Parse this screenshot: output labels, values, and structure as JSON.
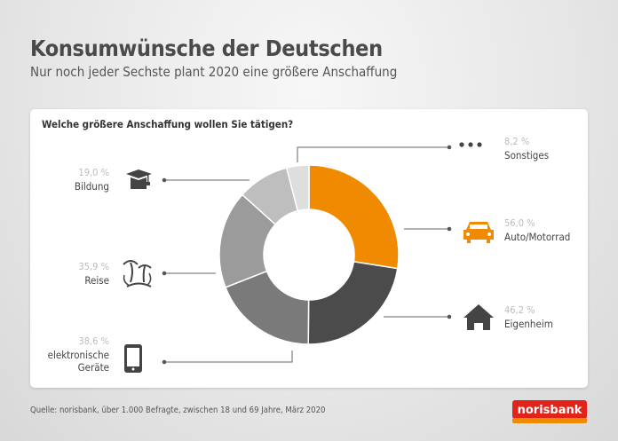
{
  "header": {
    "title": "Konsumwünsche der Deutschen",
    "subtitle": "Nur noch jeder Sechste plant 2020 eine größere Anschaffung"
  },
  "chart_data": {
    "type": "pie",
    "variant": "donut",
    "title": "Welche größere Anschaffung wollen Sie tätigen?",
    "categories": [
      "Auto/Motorrad",
      "Eigenheim",
      "elektronische Geräte",
      "Reise",
      "Bildung",
      "Sonstiges"
    ],
    "values": [
      56.0,
      46.2,
      38.6,
      35.9,
      19.0,
      8.2
    ],
    "value_labels": [
      "56,0 %",
      "46,2 %",
      "38,6 %",
      "35,9 %",
      "19,0 %",
      "8,2 %"
    ],
    "colors": [
      "#f08a00",
      "#4b4b4b",
      "#7a7a7a",
      "#9b9b9b",
      "#bebebe",
      "#dedede"
    ],
    "icons": [
      "car-icon",
      "house-icon",
      "tablet-icon",
      "palm-island-icon",
      "graduation-cap-icon",
      "dots-icon"
    ],
    "unit": "%"
  },
  "footer": {
    "source": "Quelle: norisbank, über 1.000 Befragte, zwischen 18 und 69 Jahre, März 2020",
    "logo_text": "norisbank"
  },
  "colors": {
    "brand_red": "#e2231a",
    "brand_orange": "#f08a00"
  }
}
